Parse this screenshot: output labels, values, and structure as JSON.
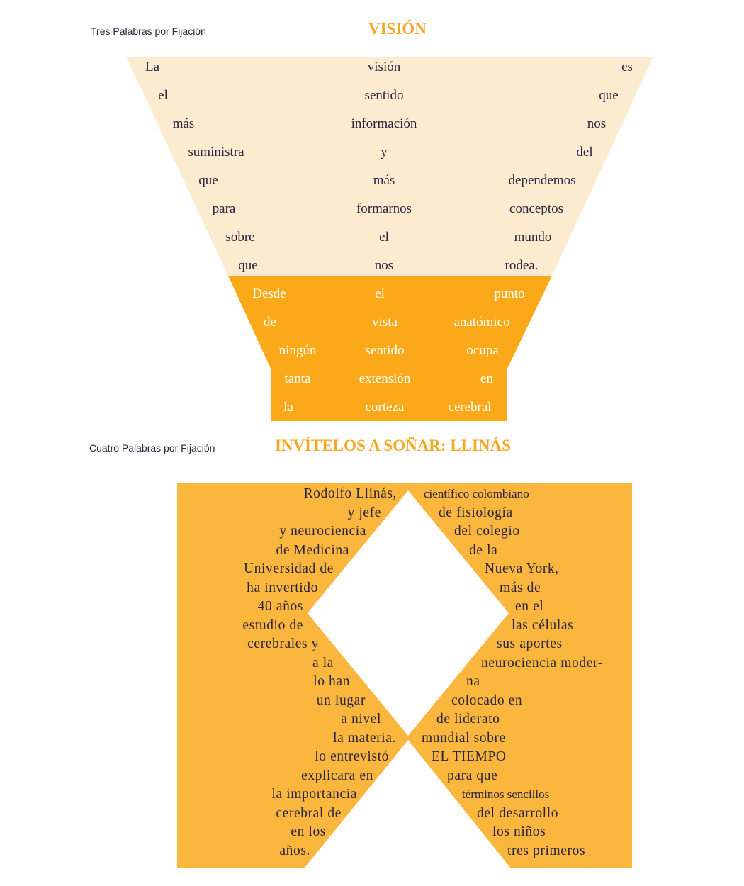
{
  "section1": {
    "label": "Tres Palabras por Fijación",
    "title": "VISIÓN",
    "colors": {
      "pale": "#fbebcf",
      "orange": "#fba919",
      "dark_text": "#2b2440"
    },
    "rows": [
      [
        "La",
        "visión",
        "es"
      ],
      [
        "el",
        "sentido",
        "que"
      ],
      [
        "más",
        "información",
        "nos"
      ],
      [
        "suministra",
        "y",
        "del"
      ],
      [
        "que",
        "más",
        "dependemos"
      ],
      [
        "para",
        "formarnos",
        "conceptos"
      ],
      [
        "sobre",
        "el",
        "mundo"
      ],
      [
        "que",
        "nos",
        "rodea."
      ],
      [
        "Desde",
        "el",
        "punto"
      ],
      [
        "de",
        "vista",
        "anatómico"
      ],
      [
        "ningún",
        "sentido",
        "ocupa"
      ],
      [
        "tanta",
        "extensión",
        "en"
      ],
      [
        "la",
        "corteza",
        "cerebral"
      ]
    ]
  },
  "section2": {
    "label": "Cuatro Palabras por Fijación",
    "title": "INVÍTELOS A SOÑAR: LLINÁS",
    "colors": {
      "fill": "#fbb63e"
    },
    "left_lines": [
      "Rodolfo Llinás,",
      "y jefe",
      "y neurociencia",
      "de Medicina",
      "Universidad de",
      "ha invertido",
      "40 años",
      "estudio de",
      "cerebrales y",
      "a la",
      "lo han",
      "un lugar",
      "a nivel",
      "la materia.",
      "lo entrevistó",
      "explicara en",
      "la importancia",
      "cerebral de",
      "en los",
      "años."
    ],
    "right_lines": [
      "científico colombiano",
      "de fisiología",
      "del colegio",
      "de la",
      "Nueva York,",
      "más de",
      "en el",
      "las células",
      "sus aportes",
      "neurociencia moder-",
      "na",
      "colocado en",
      "de liderato",
      "mundial sobre",
      "EL TIEMPO",
      "para que",
      "términos sencillos",
      "del desarrollo",
      "los niños",
      "tres primeros"
    ]
  }
}
